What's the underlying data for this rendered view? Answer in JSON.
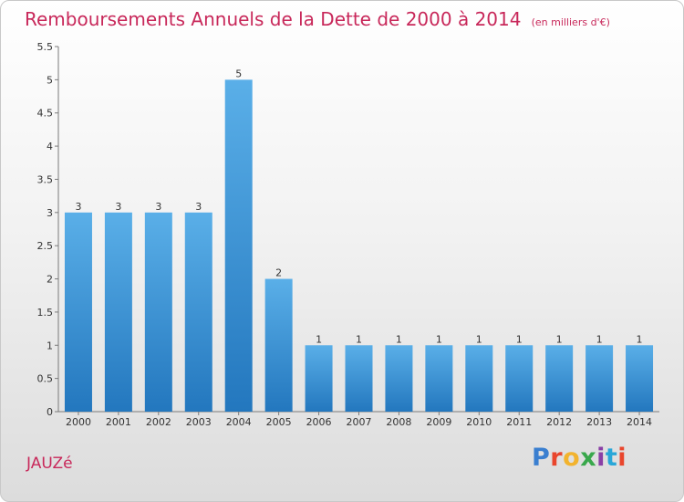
{
  "title": "Remboursements Annuels de la Dette de 2000 à 2014",
  "unit_note": "(en milliers d'€)",
  "commune": "JAUZé",
  "logo": {
    "text": "Proxiti",
    "colors": [
      "#3a7fd0",
      "#e9462d",
      "#f2b32e",
      "#39a84c",
      "#8a3fa6",
      "#29a7d8",
      "#e9462d"
    ]
  },
  "colors": {
    "title": "#c8285a",
    "bar_top": "#5aafe8",
    "bar_bottom": "#2377be"
  },
  "chart_data": {
    "type": "bar",
    "categories": [
      "2000",
      "2001",
      "2002",
      "2003",
      "2004",
      "2005",
      "2006",
      "2007",
      "2008",
      "2009",
      "2010",
      "2011",
      "2012",
      "2013",
      "2014"
    ],
    "values": [
      3,
      3,
      3,
      3,
      5,
      2,
      1,
      1,
      1,
      1,
      1,
      1,
      1,
      1,
      1
    ],
    "data_labels": [
      "3",
      "3",
      "3",
      "3",
      "5",
      "2",
      "1",
      "1",
      "1",
      "1",
      "1",
      "1",
      "1",
      "1",
      "1"
    ],
    "ylim": [
      0,
      5.5
    ],
    "yticks": [
      0,
      0.5,
      1,
      1.5,
      2,
      2.5,
      3,
      3.5,
      4,
      4.5,
      5,
      5.5
    ],
    "ytick_labels": [
      "0",
      "0.5",
      "1",
      "1.5",
      "2",
      "2.5",
      "3",
      "3.5",
      "4",
      "4.5",
      "5",
      "5.5"
    ],
    "grid": false,
    "legend": "none"
  }
}
